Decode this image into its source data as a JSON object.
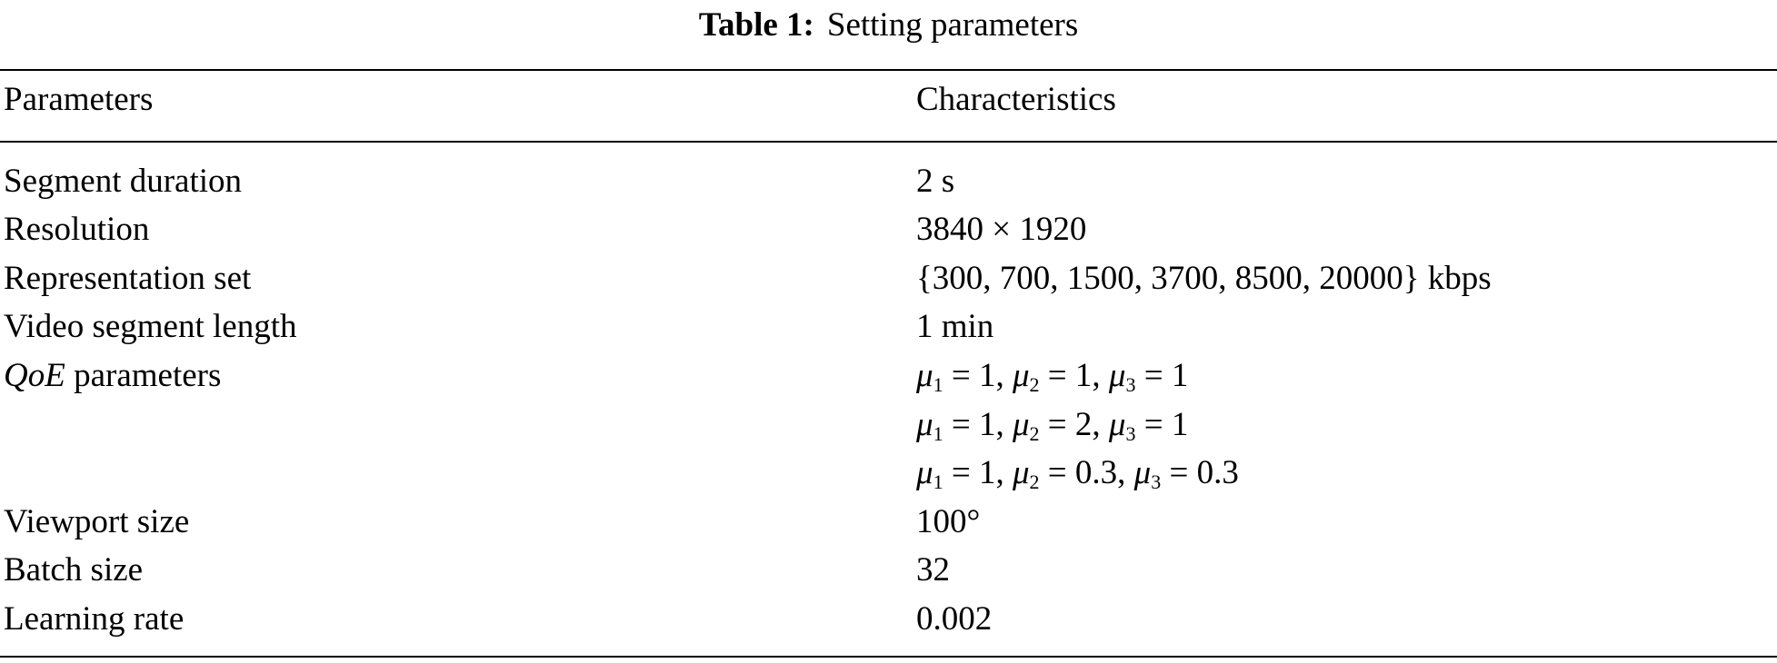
{
  "caption": {
    "label": "Table 1:",
    "text": "Setting parameters"
  },
  "headers": [
    "Parameters",
    "Characteristics"
  ],
  "rows": [
    {
      "param": "Segment duration",
      "value": "2 s"
    },
    {
      "param": "Resolution",
      "value": "3840 × 1920"
    },
    {
      "param": "Representation set",
      "value": "{300, 700, 1500, 3700, 8500, 20000} kbps"
    },
    {
      "param": "Video segment length",
      "value": "1 min"
    },
    {
      "param_italic": "QoE",
      "param": " parameters",
      "value_sets": [
        [
          "1",
          "1",
          "1"
        ],
        [
          "1",
          "2",
          "1"
        ],
        [
          "1",
          "0.3",
          "0.3"
        ]
      ]
    },
    {
      "param": "Viewport size",
      "value": "100°"
    },
    {
      "param": "Batch size",
      "value": "32"
    },
    {
      "param": "Learning rate",
      "value": "0.002"
    }
  ]
}
